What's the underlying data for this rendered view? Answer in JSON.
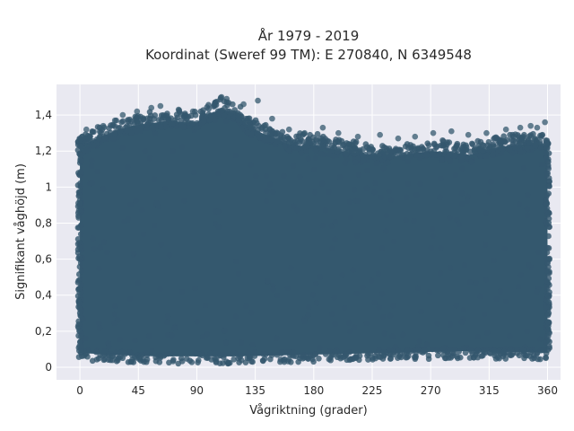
{
  "chart_data": {
    "type": "scatter",
    "title_line1": "År 1979 - 2019",
    "title_line2": "Koordinat (Sweref 99 TM): E 270840, N 6349548",
    "xlabel": "Vågriktning (grader)",
    "ylabel": "Signifikant våghöjd (m)",
    "xlim": [
      -18,
      370
    ],
    "ylim": [
      -0.07,
      1.57
    ],
    "x_ticks": [
      0,
      45,
      90,
      135,
      180,
      225,
      270,
      315,
      360
    ],
    "x_tick_labels": [
      "0",
      "45",
      "90",
      "135",
      "180",
      "225",
      "270",
      "315",
      "360"
    ],
    "y_ticks": [
      0,
      0.2,
      0.4,
      0.6,
      0.8,
      1,
      1.2,
      1.4
    ],
    "y_tick_labels": [
      "0",
      "0,2",
      "0,4",
      "0,6",
      "0,8",
      "1",
      "1,2",
      "1,4"
    ],
    "grid": true,
    "marker_color": "#34586e",
    "plot_background": "#e9e9f1",
    "series": [
      {
        "upper_envelope": {
          "x": [
            0,
            10,
            20,
            30,
            40,
            50,
            60,
            70,
            80,
            90,
            95,
            100,
            105,
            110,
            115,
            120,
            125,
            130,
            135,
            140,
            150,
            160,
            170,
            180,
            190,
            200,
            210,
            225,
            240,
            260,
            270,
            285,
            300,
            315,
            330,
            345,
            355,
            360
          ],
          "y": [
            1.27,
            1.3,
            1.33,
            1.36,
            1.38,
            1.39,
            1.4,
            1.41,
            1.4,
            1.4,
            1.42,
            1.45,
            1.46,
            1.47,
            1.46,
            1.44,
            1.41,
            1.38,
            1.36,
            1.34,
            1.31,
            1.28,
            1.27,
            1.27,
            1.26,
            1.24,
            1.23,
            1.22,
            1.21,
            1.23,
            1.24,
            1.23,
            1.22,
            1.25,
            1.27,
            1.28,
            1.28,
            1.26
          ]
        },
        "lower_envelope": {
          "x": [
            0,
            20,
            60,
            120,
            180,
            240,
            300,
            360
          ],
          "y": [
            0.05,
            0.04,
            0.03,
            0.03,
            0.04,
            0.05,
            0.06,
            0.05
          ]
        },
        "outliers": {
          "x": [
            5,
            18,
            27,
            33,
            44,
            55,
            62,
            76,
            87,
            109,
            113,
            126,
            137,
            148,
            161,
            173,
            187,
            199,
            214,
            231,
            245,
            258,
            272,
            286,
            299,
            313,
            328,
            339,
            347,
            352,
            358
          ],
          "y": [
            1.32,
            1.34,
            1.37,
            1.4,
            1.42,
            1.44,
            1.45,
            1.43,
            1.42,
            1.5,
            1.49,
            1.46,
            1.48,
            1.38,
            1.32,
            1.3,
            1.33,
            1.3,
            1.28,
            1.29,
            1.27,
            1.28,
            1.3,
            1.31,
            1.29,
            1.3,
            1.32,
            1.33,
            1.34,
            1.33,
            1.36
          ]
        }
      }
    ]
  }
}
